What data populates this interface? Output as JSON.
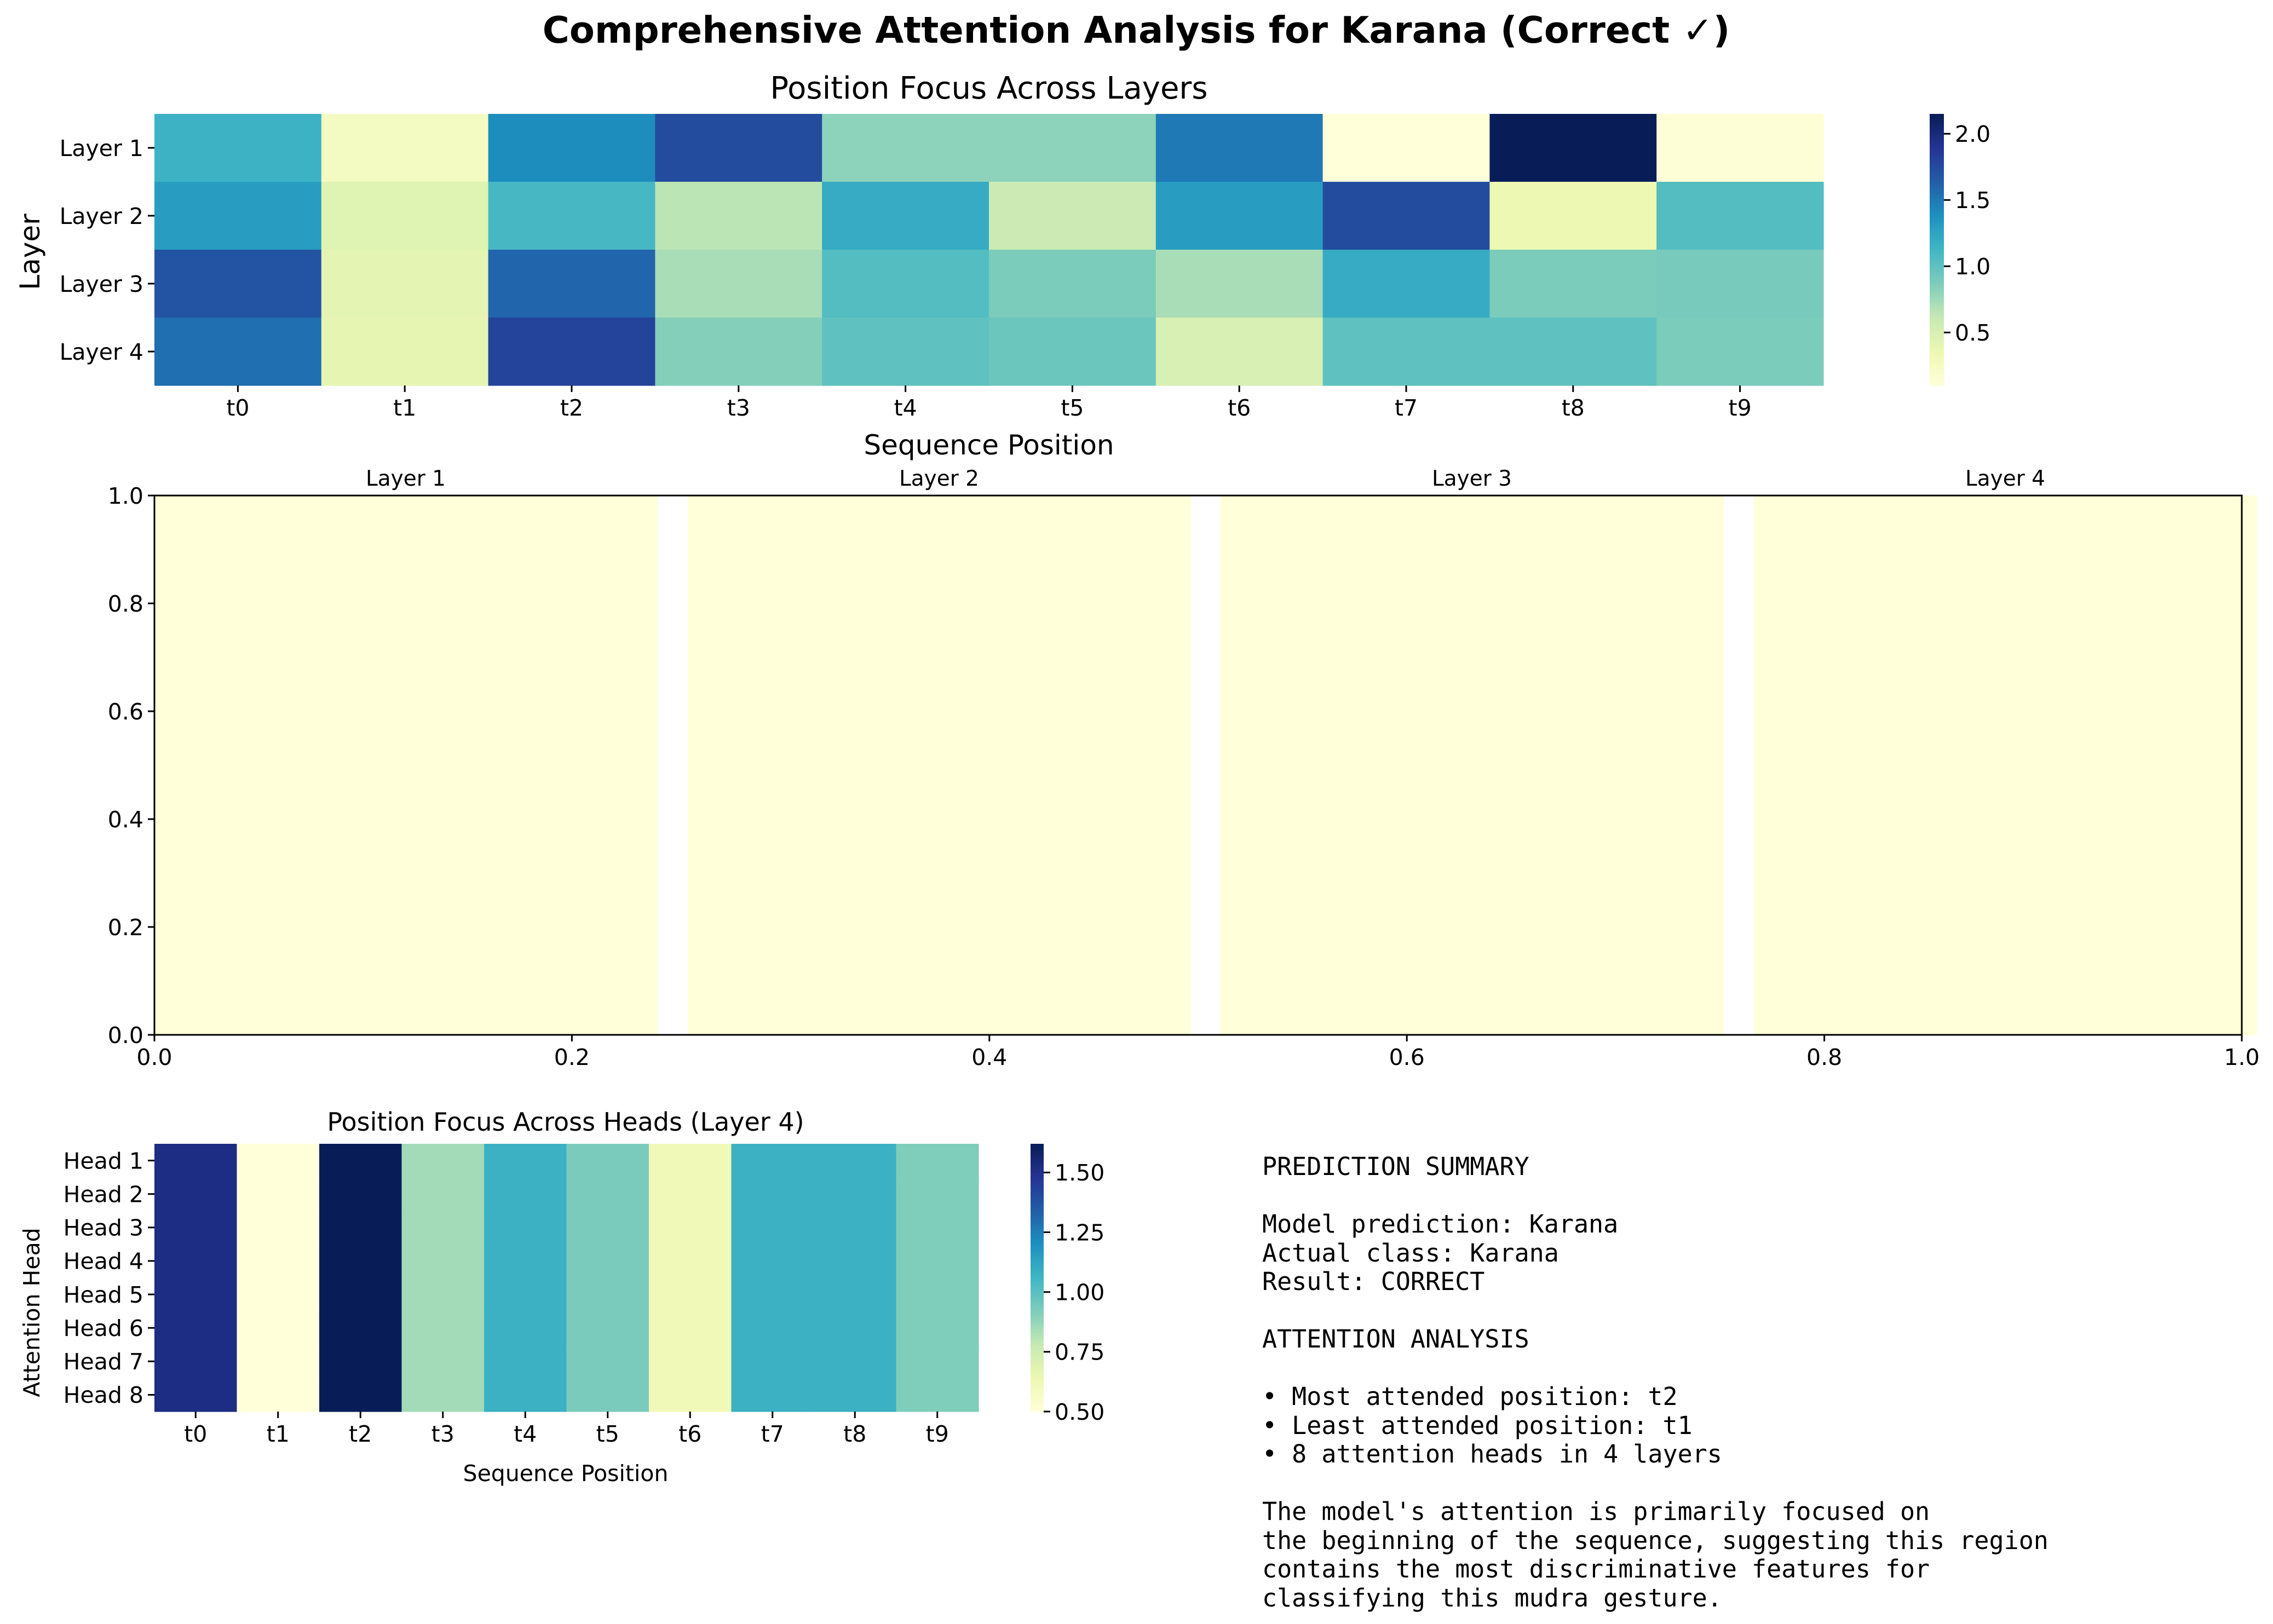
{
  "title": "Comprehensive Attention Analysis for Karana (Correct ✓)",
  "colors": {
    "colormap": "YlGnBu",
    "stops": [
      "#ffffd9",
      "#edf8b1",
      "#c7e9b4",
      "#7fcdbb",
      "#41b6c4",
      "#1d91c0",
      "#225ea8",
      "#253494",
      "#081d58"
    ]
  },
  "chart_data": [
    {
      "type": "heatmap",
      "title": "Position Focus Across Layers",
      "xlabel": "Sequence Position",
      "ylabel": "Layer",
      "x": [
        "t0",
        "t1",
        "t2",
        "t3",
        "t4",
        "t5",
        "t6",
        "t7",
        "t8",
        "t9"
      ],
      "y": [
        "Layer 1",
        "Layer 2",
        "Layer 3",
        "Layer 4"
      ],
      "values": [
        [
          1.15,
          0.25,
          1.4,
          1.75,
          0.82,
          0.82,
          1.5,
          0.1,
          2.15,
          0.12
        ],
        [
          1.3,
          0.45,
          1.1,
          0.65,
          1.2,
          0.58,
          1.3,
          1.75,
          0.35,
          1.05
        ],
        [
          1.7,
          0.42,
          1.6,
          0.72,
          1.05,
          0.88,
          0.72,
          1.2,
          0.88,
          0.9
        ],
        [
          1.55,
          0.4,
          1.8,
          0.85,
          1.0,
          0.95,
          0.5,
          1.0,
          1.0,
          0.88
        ]
      ],
      "colorbar": {
        "ticks": [
          0.5,
          1.0,
          1.5,
          2.0
        ],
        "tick_labels": [
          "0.5",
          "1.0",
          "1.5",
          "2.0"
        ],
        "range": [
          0.1,
          2.15
        ]
      }
    },
    {
      "type": "heatmap",
      "title": "",
      "subplots": [
        "Layer 1",
        "Layer 2",
        "Layer 3",
        "Layer 4"
      ],
      "x_ticks": [
        "0.0",
        "0.2",
        "0.4",
        "0.6",
        "0.8",
        "1.0"
      ],
      "y_ticks": [
        "0.0",
        "0.2",
        "0.4",
        "0.6",
        "0.8",
        "1.0"
      ],
      "xlim": [
        0,
        1
      ],
      "ylim": [
        0,
        1
      ],
      "grid_size": [
        10,
        10
      ],
      "matrices": [
        [
          [
            0.5,
            0.5,
            0.5,
            0.5,
            0.5,
            0.5,
            0.5,
            0.5,
            0.5,
            0.5
          ],
          [
            0.5,
            0.5,
            0.5,
            0.5,
            0.5,
            0.5,
            0.5,
            0.5,
            0.5,
            0.5
          ],
          [
            0.5,
            0.5,
            0.5,
            0.5,
            0.5,
            0.5,
            0.5,
            0.5,
            0.5,
            0.5
          ],
          [
            0.5,
            0.5,
            0.5,
            0.5,
            0.5,
            0.5,
            0.5,
            0.5,
            0.5,
            0.5
          ],
          [
            0.5,
            0.5,
            0.5,
            0.5,
            0.5,
            0.5,
            0.5,
            0.5,
            0.5,
            0.5
          ],
          [
            0.5,
            0.5,
            0.5,
            0.5,
            0.5,
            0.5,
            0.5,
            0.5,
            0.5,
            0.5
          ],
          [
            0.5,
            0.5,
            0.5,
            0.5,
            0.5,
            0.5,
            0.5,
            0.5,
            0.5,
            0.5
          ],
          [
            0.5,
            0.5,
            0.5,
            0.5,
            0.5,
            0.5,
            0.5,
            0.5,
            0.5,
            0.5
          ],
          [
            0.5,
            0.5,
            0.5,
            0.5,
            0.5,
            0.5,
            0.5,
            0.5,
            0.5,
            0.5
          ],
          [
            0.5,
            0.5,
            0.5,
            0.5,
            0.5,
            0.5,
            0.5,
            0.5,
            0.5,
            0.5
          ]
        ],
        [
          [
            0.5,
            0.5,
            0.5,
            0.5,
            0.5,
            0.5,
            0.5,
            0.5,
            0.5,
            0.5
          ],
          [
            0.5,
            0.5,
            0.5,
            0.5,
            0.5,
            0.5,
            0.5,
            0.5,
            0.5,
            0.5
          ],
          [
            0.5,
            0.5,
            0.5,
            0.5,
            0.5,
            0.5,
            0.5,
            0.5,
            0.5,
            0.5
          ],
          [
            0.5,
            0.5,
            0.5,
            0.5,
            0.5,
            0.5,
            0.5,
            0.5,
            0.5,
            0.5
          ],
          [
            0.5,
            0.5,
            0.5,
            0.5,
            0.5,
            0.5,
            0.5,
            0.5,
            0.5,
            0.5
          ],
          [
            0.5,
            0.5,
            0.5,
            0.5,
            0.5,
            0.5,
            0.5,
            0.5,
            0.5,
            0.5
          ],
          [
            0.5,
            0.5,
            0.5,
            0.5,
            0.5,
            0.5,
            0.5,
            0.5,
            0.5,
            0.5
          ],
          [
            0.5,
            0.5,
            0.5,
            0.5,
            0.5,
            0.5,
            0.5,
            0.5,
            0.5,
            0.5
          ],
          [
            0.5,
            0.5,
            0.5,
            0.5,
            0.5,
            0.5,
            0.5,
            0.5,
            0.5,
            0.5
          ],
          [
            0.5,
            0.5,
            0.5,
            0.5,
            0.5,
            0.5,
            0.5,
            0.5,
            0.5,
            0.5
          ]
        ],
        [
          [
            0.5,
            0.5,
            0.5,
            0.5,
            0.5,
            0.5,
            0.5,
            0.5,
            0.5,
            0.5
          ],
          [
            0.5,
            0.5,
            0.5,
            0.5,
            0.5,
            0.5,
            0.5,
            0.5,
            0.5,
            0.5
          ],
          [
            0.5,
            0.5,
            0.5,
            0.5,
            0.5,
            0.5,
            0.5,
            0.5,
            0.5,
            0.5
          ],
          [
            0.5,
            0.5,
            0.5,
            0.5,
            0.5,
            0.5,
            0.5,
            0.5,
            0.5,
            0.5
          ],
          [
            0.5,
            0.5,
            0.5,
            0.5,
            0.5,
            0.5,
            0.5,
            0.5,
            0.5,
            0.5
          ],
          [
            0.5,
            0.5,
            0.5,
            0.5,
            0.5,
            0.5,
            0.5,
            0.5,
            0.5,
            0.5
          ],
          [
            0.5,
            0.5,
            0.5,
            0.5,
            0.5,
            0.5,
            0.5,
            0.5,
            0.5,
            0.5
          ],
          [
            0.5,
            0.5,
            0.5,
            0.5,
            0.5,
            0.5,
            0.5,
            0.5,
            0.5,
            0.5
          ],
          [
            0.5,
            0.5,
            0.5,
            0.5,
            0.5,
            0.5,
            0.5,
            0.5,
            0.5,
            0.5
          ],
          [
            0.5,
            0.5,
            0.5,
            0.5,
            0.5,
            0.5,
            0.5,
            0.5,
            0.5,
            0.5
          ]
        ],
        [
          [
            0.5,
            0.5,
            0.5,
            0.5,
            0.5,
            0.5,
            0.5,
            0.5,
            0.5,
            0.5
          ],
          [
            0.5,
            0.5,
            0.5,
            0.5,
            0.5,
            0.5,
            0.5,
            0.5,
            0.5,
            0.5
          ],
          [
            0.5,
            0.5,
            0.5,
            0.5,
            0.5,
            0.5,
            0.5,
            0.5,
            0.5,
            0.5
          ],
          [
            0.5,
            0.5,
            0.5,
            0.5,
            0.5,
            0.5,
            0.5,
            0.5,
            0.5,
            0.5
          ],
          [
            0.5,
            0.5,
            0.5,
            0.5,
            0.5,
            0.5,
            0.5,
            0.5,
            0.5,
            0.5
          ],
          [
            0.5,
            0.5,
            0.5,
            0.5,
            0.5,
            0.5,
            0.5,
            0.5,
            0.5,
            0.5
          ],
          [
            0.5,
            0.5,
            0.5,
            0.5,
            0.5,
            0.5,
            0.5,
            0.5,
            0.5,
            0.5
          ],
          [
            0.5,
            0.5,
            0.5,
            0.5,
            0.5,
            0.5,
            0.5,
            0.5,
            0.5,
            0.5
          ],
          [
            0.5,
            0.5,
            0.5,
            0.5,
            0.5,
            0.5,
            0.5,
            0.5,
            0.5,
            0.5
          ],
          [
            0.5,
            0.5,
            0.5,
            0.5,
            0.5,
            0.5,
            0.5,
            0.5,
            0.5,
            0.5
          ]
        ]
      ]
    },
    {
      "type": "heatmap",
      "title": "Position Focus Across Heads (Layer 4)",
      "xlabel": "Sequence Position",
      "ylabel": "Attention Head",
      "x": [
        "t0",
        "t1",
        "t2",
        "t3",
        "t4",
        "t5",
        "t6",
        "t7",
        "t8",
        "t9"
      ],
      "y": [
        "Head 1",
        "Head 2",
        "Head 3",
        "Head 4",
        "Head 5",
        "Head 6",
        "Head 7",
        "Head 8"
      ],
      "values": [
        [
          1.52,
          0.5,
          1.62,
          0.85,
          1.08,
          0.93,
          0.62,
          1.08,
          1.08,
          0.92
        ],
        [
          1.52,
          0.5,
          1.62,
          0.85,
          1.08,
          0.93,
          0.62,
          1.08,
          1.08,
          0.92
        ],
        [
          1.52,
          0.5,
          1.62,
          0.85,
          1.08,
          0.93,
          0.62,
          1.08,
          1.08,
          0.92
        ],
        [
          1.52,
          0.5,
          1.62,
          0.85,
          1.08,
          0.93,
          0.62,
          1.08,
          1.08,
          0.92
        ],
        [
          1.52,
          0.5,
          1.62,
          0.85,
          1.08,
          0.93,
          0.62,
          1.08,
          1.08,
          0.92
        ],
        [
          1.52,
          0.5,
          1.62,
          0.85,
          1.08,
          0.93,
          0.62,
          1.08,
          1.08,
          0.92
        ],
        [
          1.52,
          0.5,
          1.62,
          0.85,
          1.08,
          0.93,
          0.62,
          1.08,
          1.08,
          0.92
        ],
        [
          1.52,
          0.5,
          1.62,
          0.85,
          1.08,
          0.93,
          0.62,
          1.08,
          1.08,
          0.92
        ]
      ],
      "colorbar": {
        "ticks": [
          0.5,
          0.75,
          1.0,
          1.25,
          1.5
        ],
        "tick_labels": [
          "0.50",
          "0.75",
          "1.00",
          "1.25",
          "1.50"
        ],
        "range": [
          0.5,
          1.62
        ]
      }
    }
  ],
  "summary": {
    "lines": [
      "PREDICTION SUMMARY",
      "",
      "Model prediction: Karana",
      "Actual class: Karana",
      "Result: CORRECT",
      "",
      "ATTENTION ANALYSIS",
      "",
      "• Most attended position: t2",
      "• Least attended position: t1",
      "• 8 attention heads in 4 layers",
      "",
      "The model's attention is primarily focused on",
      "the beginning of the sequence, suggesting this region",
      "contains the most discriminative features for",
      "classifying this mudra gesture."
    ]
  }
}
